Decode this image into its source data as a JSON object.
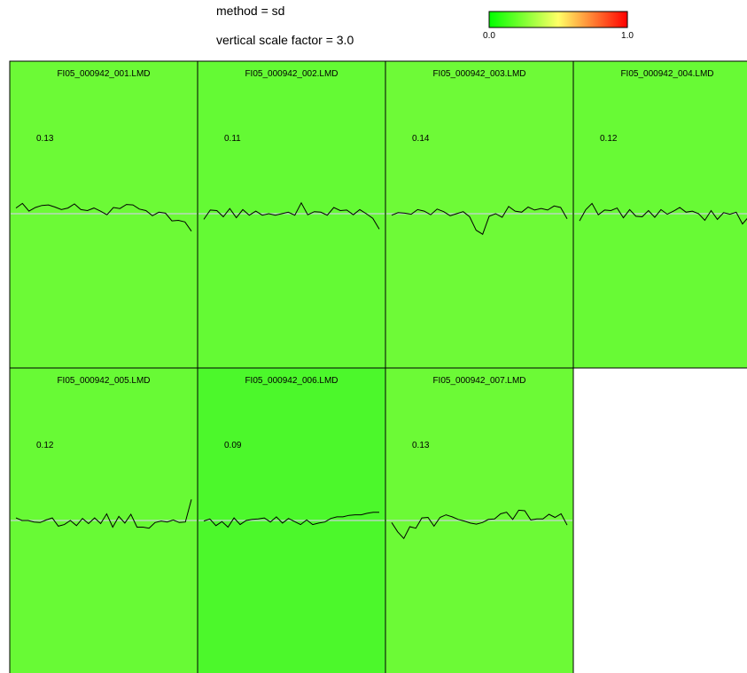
{
  "header": {
    "method_label": "method = sd",
    "scale_label": "vertical scale factor = 3.0"
  },
  "colorbar": {
    "min_label": "0.0",
    "max_label": "1.0",
    "colors": [
      "#00ff00",
      "#ffff66",
      "#ff0000"
    ]
  },
  "chart_data": {
    "type": "line",
    "method": "sd",
    "vertical_scale_factor": 3.0,
    "color_scale": [
      0,
      1
    ],
    "panels": [
      {
        "title": "FI05_000942_001.LMD",
        "value_label": "0.13",
        "value": 0.13,
        "fill": "#6cfa36",
        "values": [
          1.1,
          2.0,
          0.5,
          1.2,
          1.6,
          1.7,
          1.3,
          0.8,
          1.1,
          1.9,
          0.8,
          0.6,
          1.1,
          0.5,
          -0.2,
          1.2,
          1.0,
          1.8,
          1.7,
          0.9,
          0.6,
          -0.4,
          0.3,
          0.1,
          -1.4,
          -1.3,
          -1.6,
          -3.4
        ]
      },
      {
        "title": "FI05_000942_002.LMD",
        "value_label": "0.11",
        "value": 0.11,
        "fill": "#64fa34",
        "values": [
          -1.1,
          0.7,
          0.6,
          -0.6,
          1.0,
          -0.8,
          0.8,
          -0.3,
          0.5,
          -0.3,
          0.0,
          -0.3,
          0.0,
          0.3,
          -0.3,
          2.1,
          -0.2,
          0.4,
          0.3,
          -0.3,
          1.2,
          0.6,
          0.7,
          -0.2,
          0.8,
          0.0,
          -0.9,
          -3.0
        ]
      },
      {
        "title": "FI05_000942_003.LMD",
        "value_label": "0.14",
        "value": 0.14,
        "fill": "#6efa37",
        "values": [
          -0.3,
          0.2,
          0.1,
          -0.1,
          0.8,
          0.5,
          -0.2,
          0.9,
          0.4,
          -0.4,
          0.0,
          0.4,
          -0.6,
          -3.2,
          -4.0,
          -0.5,
          0.0,
          -0.7,
          1.4,
          0.5,
          0.3,
          1.3,
          0.7,
          1.0,
          0.7,
          1.5,
          1.2,
          -1.0
        ]
      },
      {
        "title": "FI05_000942_004.LMD",
        "value_label": "0.12",
        "value": 0.12,
        "fill": "#68fa35",
        "values": [
          -1.4,
          0.8,
          2.0,
          -0.2,
          0.7,
          0.6,
          1.1,
          -0.8,
          0.8,
          -0.5,
          -0.6,
          0.6,
          -0.7,
          0.8,
          -0.1,
          0.5,
          1.2,
          0.3,
          0.5,
          0.0,
          -1.3,
          0.6,
          -1.1,
          0.2,
          -0.1,
          0.3,
          -2.0,
          -0.6,
          -2.7
        ]
      },
      {
        "title": "FI05_000942_005.LMD",
        "value_label": "0.12",
        "value": 0.12,
        "fill": "#68fa35",
        "values": [
          0.5,
          0.0,
          0.0,
          -0.3,
          -0.4,
          0.1,
          0.5,
          -1.1,
          -0.8,
          0.0,
          -1.0,
          0.4,
          -0.6,
          0.5,
          -0.6,
          1.3,
          -1.3,
          0.8,
          -0.5,
          1.2,
          -1.3,
          -1.3,
          -1.5,
          -0.4,
          -0.1,
          -0.3,
          0.1,
          -0.4,
          -0.3,
          4.1
        ]
      },
      {
        "title": "FI05_000942_006.LMD",
        "value_label": "0.09",
        "value": 0.09,
        "fill": "#4cf82b",
        "values": [
          -0.1,
          0.3,
          -1.0,
          -0.2,
          -1.3,
          0.5,
          -0.8,
          0.0,
          0.2,
          0.3,
          0.5,
          -0.3,
          0.7,
          -0.5,
          0.4,
          -0.2,
          -0.8,
          0.1,
          -0.8,
          -0.5,
          -0.3,
          0.4,
          0.7,
          0.7,
          1.0,
          1.1,
          1.1,
          1.4,
          1.6,
          1.6
        ]
      },
      {
        "title": "FI05_000942_007.LMD",
        "value_label": "0.13",
        "value": 0.13,
        "fill": "#6cfa36",
        "values": [
          -0.4,
          -2.2,
          -3.5,
          -1.2,
          -1.5,
          0.5,
          0.6,
          -1.1,
          0.6,
          1.1,
          0.7,
          0.2,
          -0.1,
          -0.5,
          -0.7,
          -0.4,
          0.2,
          0.3,
          1.3,
          1.6,
          0.2,
          2.0,
          1.9,
          0.1,
          0.3,
          0.3,
          1.2,
          0.6,
          1.3,
          -0.9
        ]
      }
    ]
  }
}
